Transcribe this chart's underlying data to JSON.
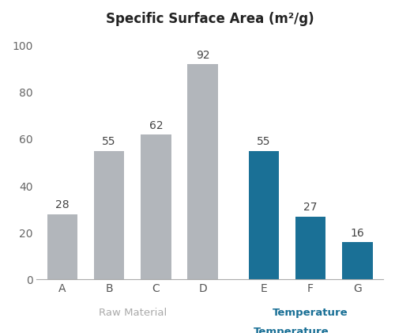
{
  "categories": [
    "A",
    "B",
    "C",
    "D",
    "E",
    "F",
    "G"
  ],
  "values": [
    28,
    55,
    62,
    92,
    55,
    27,
    16
  ],
  "bar_colors": [
    "#b2b6bb",
    "#b2b6bb",
    "#b2b6bb",
    "#b2b6bb",
    "#1a7096",
    "#1a7096",
    "#1a7096"
  ],
  "title": "Specific Surface Area (m²/g)",
  "title_fontsize": 12,
  "ylim": [
    0,
    105
  ],
  "yticks": [
    0,
    20,
    40,
    60,
    80,
    100
  ],
  "group1_label": "Raw Material",
  "group1_color": "#aaaaaa",
  "group2_label": "Temperature",
  "group2_color": "#1a7096",
  "label_fontsize": 9.5,
  "bar_width": 0.65,
  "background_color": "#ffffff",
  "tick_label_fontsize": 10,
  "value_fontsize": 10,
  "x_positions": [
    0,
    1,
    2,
    3,
    4.3,
    5.3,
    6.3
  ]
}
